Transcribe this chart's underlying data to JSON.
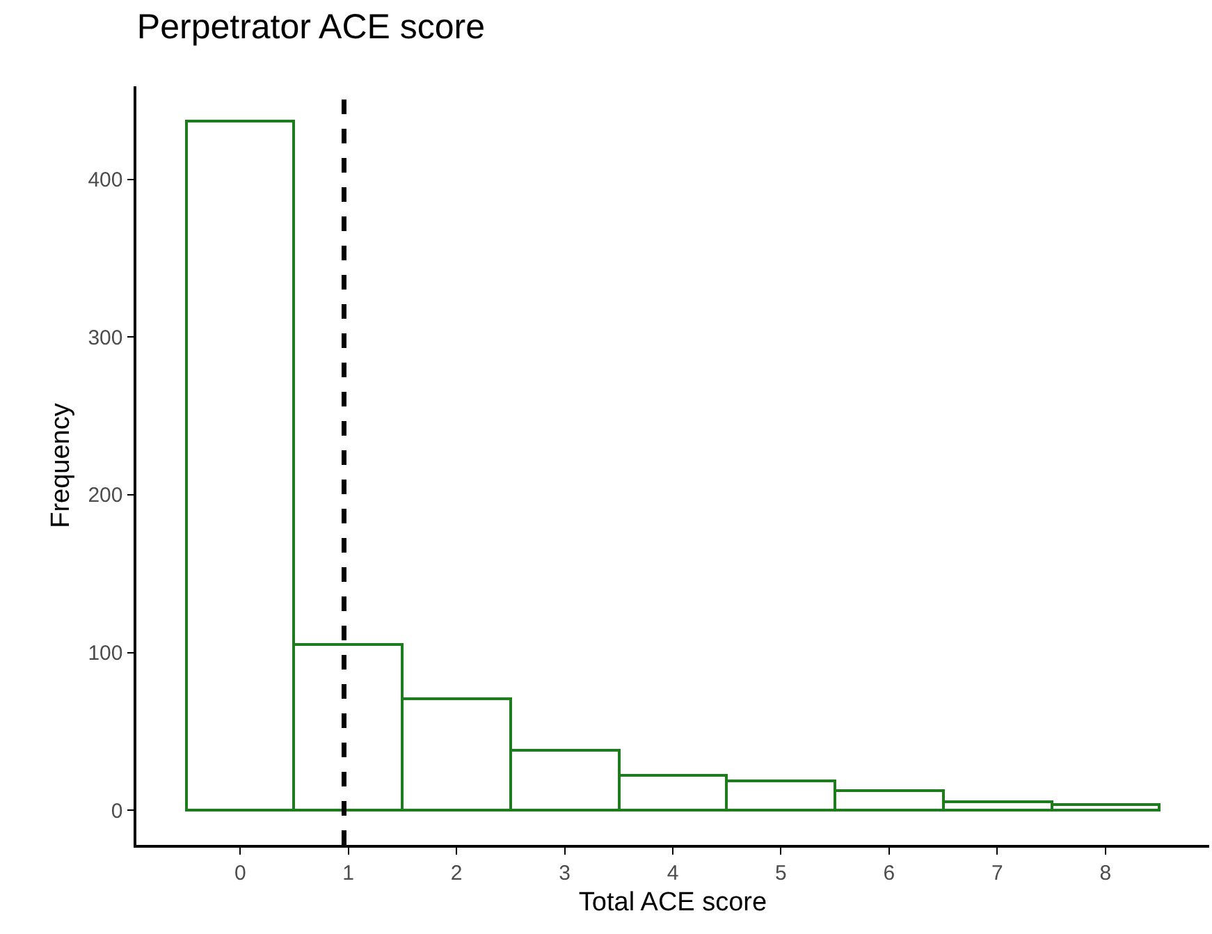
{
  "chart_data": {
    "type": "histogram",
    "title": "Perpetrator ACE score",
    "xlabel": "Total ACE score",
    "ylabel": "Frequency",
    "bins": [
      -0.5,
      0.5,
      1.5,
      2.5,
      3.5,
      4.5,
      5.5,
      6.5,
      7.5,
      8.5
    ],
    "values": [
      437,
      105,
      71,
      38,
      22,
      19,
      12,
      5,
      4
    ],
    "color": "#1e7b1e",
    "xlim": [
      -0.96,
      8.96
    ],
    "xticks": [
      0,
      1,
      2,
      3,
      4,
      5,
      6,
      7,
      8
    ],
    "ylim": [
      -22,
      459
    ],
    "yticks": [
      0,
      100,
      200,
      300,
      400
    ],
    "ref_lines": [
      {
        "axis": "x",
        "value": 0.96,
        "color": "#000000",
        "line_style": "dashed"
      }
    ]
  }
}
